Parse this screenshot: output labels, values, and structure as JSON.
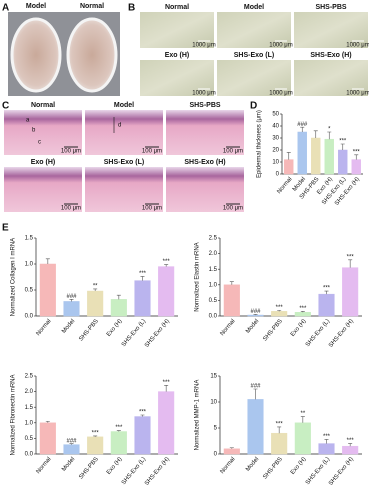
{
  "panels": {
    "A": {
      "label": "A",
      "images": [
        "Model",
        "Normal"
      ]
    },
    "B": {
      "label": "B",
      "images": [
        "Normal",
        "Model",
        "SHS-PBS",
        "Exo (H)",
        "SHS-Exo (L)",
        "SHS-Exo (H)"
      ],
      "scale_bar": "1000 μm"
    },
    "C": {
      "label": "C",
      "images": [
        "Normal",
        "Model",
        "SHS-PBS",
        "Exo (H)",
        "SHS-Exo (L)",
        "SHS-Exo (H)"
      ],
      "scale_bar": "100 μm",
      "annotations": [
        "a",
        "b",
        "c",
        "d"
      ]
    },
    "D": {
      "label": "D"
    },
    "E": {
      "label": "E"
    }
  },
  "chart_data": [
    {
      "type": "bar",
      "y_label": "Epidermal thickness (μm)",
      "categories": [
        "Normal",
        "Model",
        "SHS-PBS",
        "Exo (H)",
        "SHS-Exo (L)",
        "SHS-Exo (H)"
      ],
      "values": [
        12,
        35,
        30,
        29,
        20,
        12
      ],
      "errors": [
        6,
        4,
        6,
        6,
        5,
        4
      ],
      "annotations": [
        null,
        "###",
        null,
        "*",
        "***",
        "***"
      ],
      "colors": [
        "#f6b8b8",
        "#aac6ee",
        "#e9e0b6",
        "#c8eec2",
        "#bab4ee",
        "#e4bbf0"
      ],
      "ylim": [
        0,
        50
      ],
      "yticks": [
        0,
        10,
        20,
        30,
        40,
        50
      ]
    },
    {
      "type": "bar",
      "y_label": "Normalized Collagen I mRNA",
      "categories": [
        "Normal",
        "Model",
        "SHS-PBS",
        "Exo (H)",
        "SHS-Exo (L)",
        "SHS-Exo (H)"
      ],
      "values": [
        1.0,
        0.28,
        0.48,
        0.32,
        0.68,
        0.95
      ],
      "errors": [
        0.1,
        0.04,
        0.04,
        0.08,
        0.08,
        0.04
      ],
      "annotations": [
        null,
        "###",
        "**",
        null,
        "***",
        "***"
      ],
      "colors": [
        "#f6b8b8",
        "#aac6ee",
        "#e9e0b6",
        "#c8eec2",
        "#bab4ee",
        "#e4bbf0"
      ],
      "ylim": [
        0,
        1.5
      ],
      "yticks": [
        {
          "value": 0,
          "label": "0.0"
        },
        {
          "value": 0.5,
          "label": "0.5"
        },
        {
          "value": 1,
          "label": "1.0"
        },
        {
          "value": 1.5,
          "label": "1.5"
        }
      ]
    },
    {
      "type": "bar",
      "y_label": "Normalized Elastin mRNA",
      "categories": [
        "Normal",
        "Model",
        "SHS-PBS",
        "Exo (H)",
        "SHS-Exo (L)",
        "SHS-Exo (H)"
      ],
      "values": [
        1.0,
        0.03,
        0.15,
        0.12,
        0.7,
        1.55
      ],
      "errors": [
        0.1,
        0.02,
        0.03,
        0.03,
        0.1,
        0.25
      ],
      "annotations": [
        null,
        "###",
        "***",
        "***",
        "***",
        "***"
      ],
      "colors": [
        "#f6b8b8",
        "#aac6ee",
        "#e9e0b6",
        "#c8eec2",
        "#bab4ee",
        "#e4bbf0"
      ],
      "ylim": [
        0,
        2.5
      ],
      "yticks": [
        {
          "value": 0,
          "label": "0.0"
        },
        0.5,
        {
          "value": 1,
          "label": "1.0"
        },
        1.5,
        {
          "value": 2,
          "label": "2.0"
        },
        2.5
      ]
    },
    {
      "type": "bar",
      "y_label": "Normalized Fibronectin mRNA",
      "categories": [
        "Normal",
        "Model",
        "SHS-PBS",
        "Exo (H)",
        "SHS-Exo (L)",
        "SHS-Exo (H)"
      ],
      "values": [
        1.0,
        0.3,
        0.55,
        0.72,
        1.2,
        2.0
      ],
      "errors": [
        0.05,
        0.03,
        0.03,
        0.03,
        0.05,
        0.2
      ],
      "annotations": [
        null,
        "###",
        "***",
        "***",
        "***",
        "***"
      ],
      "colors": [
        "#f6b8b8",
        "#aac6ee",
        "#e9e0b6",
        "#c8eec2",
        "#bab4ee",
        "#e4bbf0"
      ],
      "ylim": [
        0,
        2.5
      ],
      "yticks": [
        {
          "value": 0,
          "label": "0.0"
        },
        0.5,
        {
          "value": 1,
          "label": "1.0"
        },
        1.5,
        {
          "value": 2,
          "label": "2.0"
        },
        2.5
      ]
    },
    {
      "type": "bar",
      "y_label": "Normalized MMP-1 mRNA",
      "categories": [
        "Normal",
        "Model",
        "SHS-PBS",
        "Exo (H)",
        "SHS-Exo (L)",
        "SHS-Exo (H)"
      ],
      "values": [
        1.0,
        10.5,
        4.0,
        6.0,
        2.0,
        1.5
      ],
      "errors": [
        0.2,
        2,
        1.2,
        1.2,
        0.8,
        0.5
      ],
      "annotations": [
        null,
        "###",
        "***",
        "**",
        "***",
        "***"
      ],
      "colors": [
        "#f6b8b8",
        "#aac6ee",
        "#e9e0b6",
        "#c8eec2",
        "#bab4ee",
        "#e4bbf0"
      ],
      "ylim": [
        0,
        15
      ],
      "yticks": [
        0,
        5,
        10,
        15
      ]
    }
  ]
}
